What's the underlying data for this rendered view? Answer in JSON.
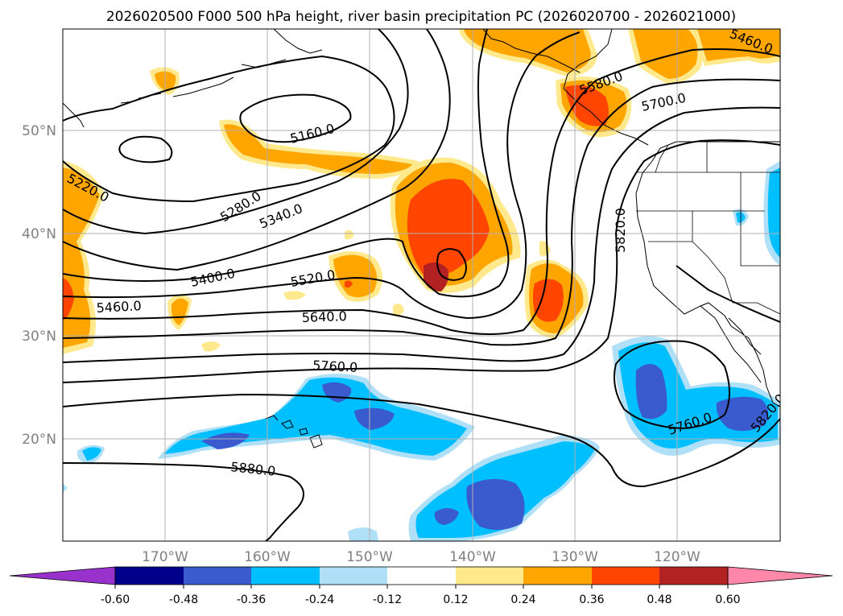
{
  "title": "2026020500 F000 500 hPa height, river basin precipitation PC (2026020700 - 2026021000)",
  "lat_labels": [
    "50°N",
    "40°N",
    "30°N",
    "20°N"
  ],
  "lon_labels": [
    "170°W",
    "160°W",
    "150°W",
    "140°W",
    "130°W",
    "120°W"
  ],
  "contour_labels": [
    "5160.0",
    "5220.0",
    "5280.0",
    "5340.0",
    "5400.0",
    "5460.0",
    "5520.0",
    "5580.0",
    "5640.0",
    "5700.0",
    "5760.0",
    "5760.0",
    "5820.0",
    "5820.0",
    "5880.0",
    "5460.0"
  ],
  "colorbar": {
    "tick_labels": [
      "-0.60",
      "-0.48",
      "-0.36",
      "-0.24",
      "-0.12",
      "0.12",
      "0.24",
      "0.36",
      "0.48",
      "0.60"
    ],
    "colors": [
      "#9932cc",
      "#00008b",
      "#3a5bcd",
      "#00bfff",
      "#afe0f7",
      "#ffffff",
      "#ffe98c",
      "#ffa500",
      "#ff4500",
      "#b22222",
      "#ff88aa"
    ]
  },
  "colors": {
    "grid": "#b0b0b0",
    "axis_text": "#808080",
    "contour": "#000000"
  }
}
